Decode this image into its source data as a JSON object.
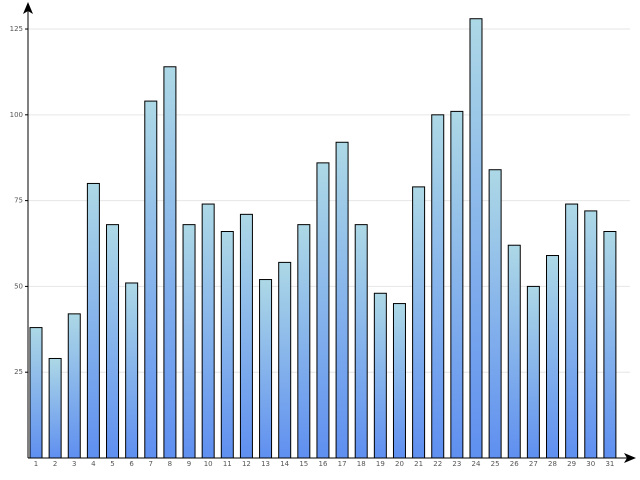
{
  "chart_data": {
    "type": "bar",
    "categories": [
      "1",
      "2",
      "3",
      "4",
      "5",
      "6",
      "7",
      "8",
      "9",
      "10",
      "11",
      "12",
      "13",
      "14",
      "15",
      "16",
      "17",
      "18",
      "19",
      "20",
      "21",
      "22",
      "23",
      "24",
      "25",
      "26",
      "27",
      "28",
      "29",
      "30",
      "31"
    ],
    "values": [
      38,
      29,
      42,
      80,
      68,
      51,
      104,
      114,
      68,
      74,
      66,
      71,
      52,
      57,
      68,
      86,
      92,
      68,
      48,
      45,
      79,
      100,
      101,
      128,
      84,
      62,
      50,
      59,
      74,
      72,
      66
    ],
    "gradient": [
      "#add8e6",
      "#5f8ff0"
    ],
    "ylim": [
      0,
      132
    ],
    "yticks": [
      25,
      50,
      75,
      100,
      125
    ],
    "grid": true
  }
}
